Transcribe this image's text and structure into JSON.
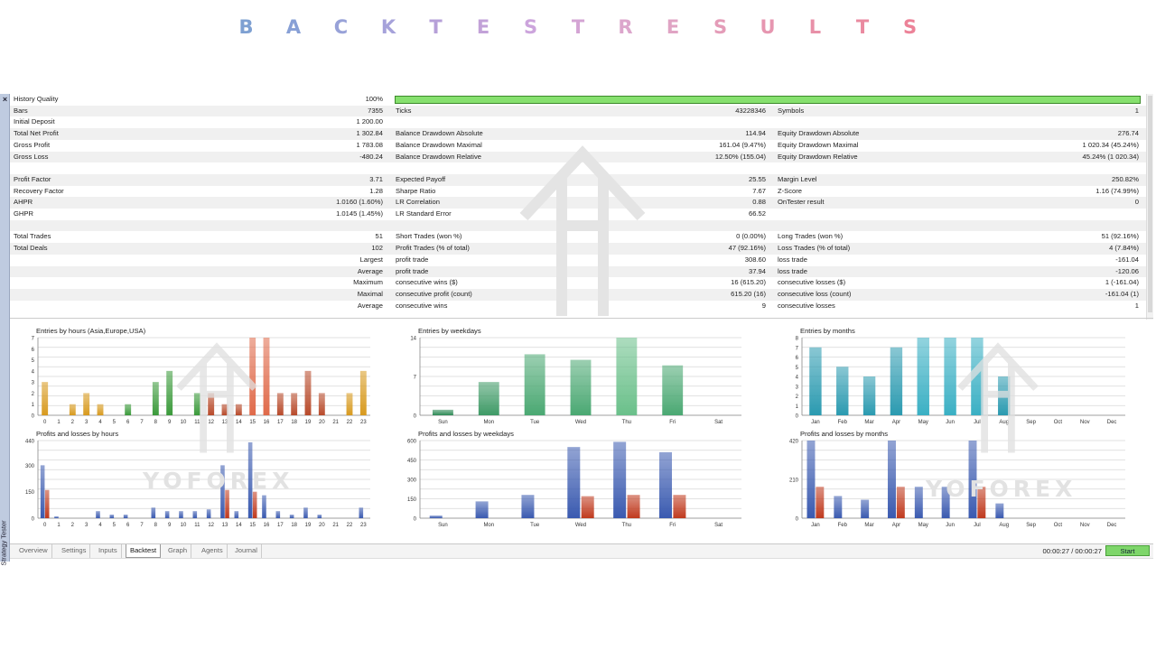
{
  "banner": {
    "title": "BACKTESTRESULTS",
    "letters": [
      "B",
      "A",
      "C",
      "K",
      "T",
      "E",
      "S",
      "T",
      "R",
      "E",
      "S",
      "U",
      "L",
      "T",
      "S"
    ],
    "letter_colors": [
      "#7ea0d2",
      "#88a0d6",
      "#98a2d8",
      "#a6a2da",
      "#b6a0d8",
      "#c2a2d8",
      "#cca4dc",
      "#d4a4d4",
      "#dca6cc",
      "#e0a4c4",
      "#e49cb8",
      "#e696b0",
      "#e890a8",
      "#ea8aa0",
      "#ec8298"
    ]
  },
  "sidebar": {
    "close_label": "×",
    "vertical_label": "Strategy Tester"
  },
  "stats": {
    "rows": [
      [
        "History Quality",
        "100%",
        "",
        "",
        "",
        ""
      ],
      [
        "Bars",
        "7355",
        "Ticks",
        "43228346",
        "Symbols",
        "1"
      ],
      [
        "Initial Deposit",
        "1 200.00",
        "",
        "",
        "",
        ""
      ],
      [
        "Total Net Profit",
        "1 302.84",
        "Balance Drawdown Absolute",
        "114.94",
        "Equity Drawdown Absolute",
        "276.74"
      ],
      [
        "Gross Profit",
        "1 783.08",
        "Balance Drawdown Maximal",
        "161.04 (9.47%)",
        "Equity Drawdown Maximal",
        "1 020.34 (45.24%)"
      ],
      [
        "Gross Loss",
        "-480.24",
        "Balance Drawdown Relative",
        "12.50% (155.04)",
        "Equity Drawdown Relative",
        "45.24% (1 020.34)"
      ],
      [
        "",
        "",
        "",
        "",
        "",
        ""
      ],
      [
        "Profit Factor",
        "3.71",
        "Expected Payoff",
        "25.55",
        "Margin Level",
        "250.82%"
      ],
      [
        "Recovery Factor",
        "1.28",
        "Sharpe Ratio",
        "7.67",
        "Z-Score",
        "1.16 (74.99%)"
      ],
      [
        "AHPR",
        "1.0160 (1.60%)",
        "LR Correlation",
        "0.88",
        "OnTester result",
        "0"
      ],
      [
        "GHPR",
        "1.0145 (1.45%)",
        "LR Standard Error",
        "66.52",
        "",
        ""
      ],
      [
        "",
        "",
        "",
        "",
        "",
        ""
      ],
      [
        "Total Trades",
        "51",
        "Short Trades (won %)",
        "0 (0.00%)",
        "Long Trades (won %)",
        "51 (92.16%)"
      ],
      [
        "Total Deals",
        "102",
        "Profit Trades (% of total)",
        "47 (92.16%)",
        "Loss Trades (% of total)",
        "4 (7.84%)"
      ],
      [
        "",
        "Largest",
        "profit trade",
        "308.60",
        "loss trade",
        "-161.04"
      ],
      [
        "",
        "Average",
        "profit trade",
        "37.94",
        "loss trade",
        "-120.06"
      ],
      [
        "",
        "Maximum",
        "consecutive wins ($)",
        "16 (615.20)",
        "consecutive losses ($)",
        "1 (-161.04)"
      ],
      [
        "",
        "Maximal",
        "consecutive profit (count)",
        "615.20 (16)",
        "consecutive loss (count)",
        "-161.04 (1)"
      ],
      [
        "",
        "Average",
        "consecutive wins",
        "9",
        "consecutive losses",
        "1"
      ]
    ],
    "history_quality_bar": 1.0
  },
  "chart_data": [
    {
      "type": "bar",
      "title": "Entries by hours (Asia,Europe,USA)",
      "categories": [
        "0",
        "1",
        "2",
        "3",
        "4",
        "5",
        "6",
        "7",
        "8",
        "9",
        "10",
        "11",
        "12",
        "13",
        "14",
        "15",
        "16",
        "17",
        "18",
        "19",
        "20",
        "21",
        "22",
        "23"
      ],
      "values": [
        3,
        0,
        1,
        2,
        1,
        0,
        1,
        0,
        3,
        4,
        0,
        2,
        2,
        1,
        1,
        7,
        7,
        2,
        2,
        4,
        2,
        0,
        2,
        4
      ],
      "colors": [
        "#d89a1e",
        "#d89a1e",
        "#d89a1e",
        "#d89a1e",
        "#d89a1e",
        "#3a9a3a",
        "#3a9a3a",
        "#3a9a3a",
        "#3a9a3a",
        "#3a9a3a",
        "#3a9a3a",
        "#3a9a3a",
        "#b84a2a",
        "#b84a2a",
        "#b84a2a",
        "#e06a4a",
        "#e06a4a",
        "#b84a2a",
        "#b84a2a",
        "#b84a2a",
        "#b84a2a",
        "#d89a1e",
        "#d89a1e",
        "#d89a1e"
      ],
      "ylim": [
        0,
        7
      ],
      "yticks": [
        "0",
        "1",
        "2",
        "3",
        "4",
        "5",
        "6",
        "7"
      ]
    },
    {
      "type": "bar",
      "title": "Entries by weekdays",
      "categories": [
        "Sun",
        "Mon",
        "Tue",
        "Wed",
        "Thu",
        "Fri",
        "Sat"
      ],
      "values": [
        1,
        6,
        11,
        10,
        14,
        9,
        0
      ],
      "colors": [
        "#2e8a56",
        "#3e9a66",
        "#4aa872",
        "#4aa872",
        "#6ac08a",
        "#4aa872",
        "#4aa872"
      ],
      "ylim": [
        0,
        14
      ],
      "yticks": [
        "0",
        "7",
        "14"
      ]
    },
    {
      "type": "bar",
      "title": "Entries by months",
      "categories": [
        "Jan",
        "Feb",
        "Mar",
        "Apr",
        "May",
        "Jun",
        "Jul",
        "Aug",
        "Sep",
        "Oct",
        "Nov",
        "Dec"
      ],
      "values": [
        7,
        5,
        4,
        7,
        8,
        8,
        8,
        4,
        0,
        0,
        0,
        0
      ],
      "colors": [
        "#2a9ab0",
        "#2a9ab0",
        "#2a9ab0",
        "#2a9ab0",
        "#3ab0c4",
        "#3ab0c4",
        "#3ab0c4",
        "#2a9ab0",
        "#2a9ab0",
        "#2a9ab0",
        "#2a9ab0",
        "#2a9ab0"
      ],
      "ylim": [
        0,
        8
      ],
      "yticks": [
        "0",
        "1",
        "2",
        "3",
        "4",
        "5",
        "6",
        "7",
        "8"
      ]
    },
    {
      "type": "bar",
      "title": "Profits and losses by hours",
      "categories": [
        "0",
        "1",
        "2",
        "3",
        "4",
        "5",
        "6",
        "7",
        "8",
        "9",
        "10",
        "11",
        "12",
        "13",
        "14",
        "15",
        "16",
        "17",
        "18",
        "19",
        "20",
        "21",
        "22",
        "23"
      ],
      "series": [
        {
          "values": [
            300,
            10,
            0,
            0,
            40,
            20,
            20,
            0,
            60,
            40,
            40,
            40,
            50,
            300,
            40,
            430,
            130,
            40,
            20,
            60,
            20,
            0,
            0,
            60
          ],
          "color": "#3a5ab0"
        },
        {
          "values": [
            160,
            0,
            0,
            0,
            0,
            0,
            0,
            0,
            0,
            0,
            0,
            0,
            0,
            160,
            0,
            150,
            0,
            0,
            0,
            0,
            0,
            0,
            0,
            0
          ],
          "color": "#c03a1e"
        }
      ],
      "ylim": [
        0,
        440
      ],
      "yticks": [
        "0",
        "150",
        "300",
        "440"
      ]
    },
    {
      "type": "bar",
      "title": "Profits and losses by weekdays",
      "categories": [
        "Sun",
        "Mon",
        "Tue",
        "Wed",
        "Thu",
        "Fri",
        "Sat"
      ],
      "series": [
        {
          "values": [
            20,
            130,
            180,
            550,
            590,
            510,
            0
          ],
          "color": "#3a5ab0"
        },
        {
          "values": [
            0,
            0,
            0,
            170,
            180,
            180,
            0
          ],
          "color": "#c03a1e"
        }
      ],
      "ylim": [
        0,
        600
      ],
      "yticks": [
        "0",
        "150",
        "300",
        "450",
        "600"
      ]
    },
    {
      "type": "bar",
      "title": "Profits and losses by months",
      "categories": [
        "Jan",
        "Feb",
        "Mar",
        "Apr",
        "May",
        "Jun",
        "Jul",
        "Aug",
        "Sep",
        "Oct",
        "Nov",
        "Dec"
      ],
      "series": [
        {
          "values": [
            420,
            120,
            100,
            420,
            170,
            170,
            420,
            80,
            0,
            0,
            0,
            0
          ],
          "color": "#3a5ab0"
        },
        {
          "values": [
            170,
            0,
            0,
            170,
            0,
            0,
            170,
            0,
            0,
            0,
            0,
            0
          ],
          "color": "#c03a1e"
        }
      ],
      "ylim": [
        0,
        420
      ],
      "yticks": [
        "0",
        "210",
        "420"
      ]
    }
  ],
  "watermark": {
    "text1": "YOFOREX",
    "text2": "YOFOREX",
    "color": "#dcdcdc"
  },
  "tabs": {
    "items": [
      "Overview",
      "Settings",
      "Inputs",
      "Backtest",
      "Graph",
      "Agents",
      "Journal"
    ],
    "active": "Backtest",
    "timer": "00:00:27 / 00:00:27",
    "start_label": "Start"
  }
}
